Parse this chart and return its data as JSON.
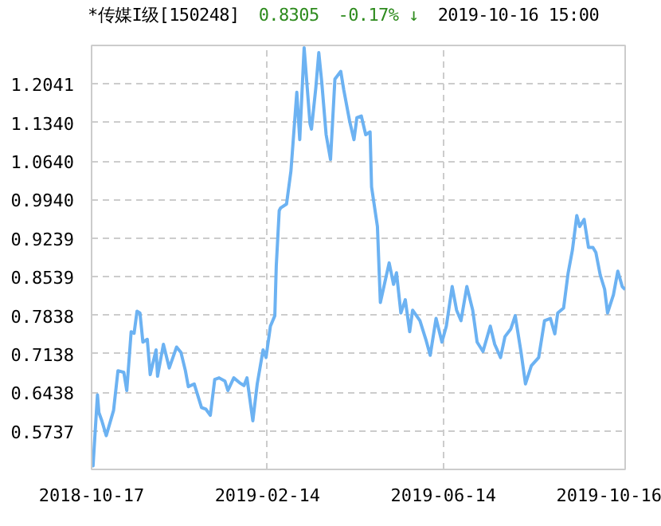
{
  "chart_data": {
    "type": "line",
    "title": "*传媒I级[150248]",
    "annotations": [
      "0.8305",
      "-0.17% ↓",
      "2019-10-16 15:00"
    ],
    "x": [
      "2018-10-17",
      "2018-10-18",
      "2018-10-21",
      "2018-10-22",
      "2018-10-24",
      "2018-10-27",
      "2018-11-01",
      "2018-11-04",
      "2018-11-08",
      "2018-11-10",
      "2018-11-13",
      "2018-11-15",
      "2018-11-17",
      "2018-11-19",
      "2018-11-21",
      "2018-11-24",
      "2018-11-26",
      "2018-11-30",
      "2018-12-01",
      "2018-12-05",
      "2018-12-09",
      "2018-12-14",
      "2018-12-17",
      "2018-12-20",
      "2018-12-22",
      "2018-12-26",
      "2018-12-31",
      "2019-01-03",
      "2019-01-06",
      "2019-01-09",
      "2019-01-12",
      "2019-01-16",
      "2019-01-18",
      "2019-01-22",
      "2019-01-26",
      "2019-01-29",
      "2019-01-31",
      "2019-02-04",
      "2019-02-07",
      "2019-02-11",
      "2019-02-13",
      "2019-02-16",
      "2019-02-19",
      "2019-02-20",
      "2019-02-22",
      "2019-02-23",
      "2019-02-27",
      "2019-03-02",
      "2019-03-06",
      "2019-03-08",
      "2019-03-11",
      "2019-03-15",
      "2019-03-16",
      "2019-03-19",
      "2019-03-21",
      "2019-03-23",
      "2019-03-26",
      "2019-03-29",
      "2019-04-01",
      "2019-04-05",
      "2019-04-07",
      "2019-04-11",
      "2019-04-14",
      "2019-04-16",
      "2019-04-19",
      "2019-04-22",
      "2019-04-25",
      "2019-04-26",
      "2019-04-30",
      "2019-05-02",
      "2019-05-04",
      "2019-05-08",
      "2019-05-11",
      "2019-05-13",
      "2019-05-16",
      "2019-05-19",
      "2019-05-22",
      "2019-05-24",
      "2019-05-29",
      "2019-06-02",
      "2019-06-05",
      "2019-06-09",
      "2019-06-13",
      "2019-06-16",
      "2019-06-20",
      "2019-06-23",
      "2019-06-26",
      "2019-06-30",
      "2019-07-04",
      "2019-07-07",
      "2019-07-11",
      "2019-07-16",
      "2019-07-19",
      "2019-07-23",
      "2019-07-26",
      "2019-07-30",
      "2019-08-02",
      "2019-08-06",
      "2019-08-09",
      "2019-08-13",
      "2019-08-18",
      "2019-08-22",
      "2019-08-26",
      "2019-08-29",
      "2019-08-31",
      "2019-09-04",
      "2019-09-07",
      "2019-09-10",
      "2019-09-13",
      "2019-09-15",
      "2019-09-18",
      "2019-09-21",
      "2019-09-24",
      "2019-09-26",
      "2019-09-29",
      "2019-10-02",
      "2019-10-04",
      "2019-10-08",
      "2019-10-11",
      "2019-10-14",
      "2019-10-16"
    ],
    "series": [
      {
        "color": "#6cb2f2",
        "values": [
          0.535,
          0.51,
          0.639,
          0.607,
          0.592,
          0.565,
          0.611,
          0.683,
          0.68,
          0.647,
          0.754,
          0.751,
          0.791,
          0.788,
          0.735,
          0.74,
          0.676,
          0.721,
          0.673,
          0.731,
          0.688,
          0.726,
          0.716,
          0.683,
          0.654,
          0.659,
          0.616,
          0.613,
          0.602,
          0.667,
          0.67,
          0.664,
          0.647,
          0.67,
          0.661,
          0.656,
          0.67,
          0.592,
          0.659,
          0.721,
          0.707,
          0.764,
          0.783,
          0.874,
          0.974,
          0.979,
          0.986,
          1.046,
          1.189,
          1.103,
          1.27,
          1.132,
          1.122,
          1.198,
          1.261,
          1.208,
          1.112,
          1.067,
          1.213,
          1.227,
          1.194,
          1.137,
          1.103,
          1.143,
          1.146,
          1.112,
          1.117,
          1.017,
          0.945,
          0.807,
          0.831,
          0.879,
          0.84,
          0.861,
          0.788,
          0.812,
          0.754,
          0.793,
          0.774,
          0.74,
          0.711,
          0.778,
          0.735,
          0.764,
          0.836,
          0.793,
          0.774,
          0.836,
          0.793,
          0.735,
          0.718,
          0.764,
          0.731,
          0.707,
          0.745,
          0.759,
          0.783,
          0.716,
          0.659,
          0.692,
          0.707,
          0.774,
          0.778,
          0.75,
          0.788,
          0.797,
          0.859,
          0.902,
          0.965,
          0.945,
          0.958,
          0.907,
          0.907,
          0.898,
          0.857,
          0.831,
          0.788,
          0.821,
          0.864,
          0.836,
          0.8305
        ]
      }
    ],
    "xlim": [
      "2018-10-17",
      "2019-10-16"
    ],
    "xticks": [
      "2018-10-17",
      "2019-02-14",
      "2019-06-14",
      "2019-10-16"
    ],
    "ylim": [
      0.5036,
      1.2742
    ],
    "yticks": [
      0.5737,
      0.6438,
      0.7138,
      0.7838,
      0.8539,
      0.9239,
      {
        "value": 0.994,
        "label": "0.9940"
      },
      {
        "value": 1.064,
        "label": "1.0640"
      },
      {
        "value": 1.134,
        "label": "1.1340"
      },
      1.2041
    ],
    "grid": true,
    "marker": "none",
    "line_style": "solid"
  }
}
